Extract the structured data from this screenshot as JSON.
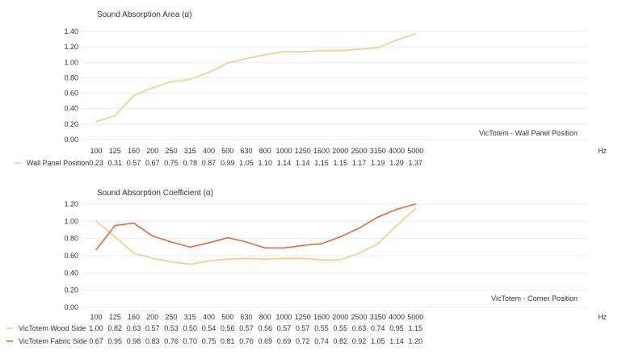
{
  "chart_data": [
    {
      "type": "line",
      "title": "Sound Absorption Area (α)",
      "position_label": "VicTotem - Wall Panel Position",
      "unit": "Hz",
      "x": [
        "100",
        "125",
        "160",
        "200",
        "250",
        "315",
        "400",
        "500",
        "630",
        "800",
        "1000",
        "1250",
        "1600",
        "2000",
        "2500",
        "3150",
        "4000",
        "5000"
      ],
      "yticks": [
        "0.00",
        "0.20",
        "0.40",
        "0.60",
        "0.80",
        "1.00",
        "1.20",
        "1.40"
      ],
      "ylim": [
        0,
        1.4
      ],
      "grid": true,
      "series": [
        {
          "name": "Wall Panel Position",
          "color": "#f6c77e",
          "values": [
            0.23,
            0.31,
            0.57,
            0.67,
            0.75,
            0.78,
            0.87,
            0.99,
            1.05,
            1.1,
            1.14,
            1.14,
            1.15,
            1.15,
            1.17,
            1.19,
            1.29,
            1.37
          ],
          "labels": [
            "0.23",
            "0.31",
            "0.57",
            "0.67",
            "0.75",
            "0.78",
            "0.87",
            "0.99",
            "1.05",
            "1.10",
            "1.14",
            "1.14",
            "1.15",
            "1.15",
            "1.17",
            "1.19",
            "1.29",
            "1.37"
          ]
        }
      ]
    },
    {
      "type": "line",
      "title": "Sound Absorption Coefficient (α)",
      "position_label": "VicTotem - Corner Position",
      "unit": "Hz",
      "x": [
        "100",
        "125",
        "160",
        "200",
        "250",
        "315",
        "400",
        "500",
        "630",
        "800",
        "1000",
        "1250",
        "1600",
        "2000",
        "2500",
        "3150",
        "4000",
        "5000"
      ],
      "yticks": [
        "0.00",
        "0.20",
        "0.40",
        "0.60",
        "0.80",
        "1.00",
        "1.20"
      ],
      "ylim": [
        0,
        1.2
      ],
      "grid": true,
      "series": [
        {
          "name": "VicTotem Wood Side",
          "color": "#f6c77e",
          "values": [
            1.0,
            0.82,
            0.63,
            0.57,
            0.53,
            0.5,
            0.54,
            0.56,
            0.57,
            0.56,
            0.57,
            0.57,
            0.55,
            0.55,
            0.63,
            0.74,
            0.95,
            1.15
          ],
          "labels": [
            "1.00",
            "0.82",
            "0.63",
            "0.57",
            "0.53",
            "0.50",
            "0.54",
            "0.56",
            "0.57",
            "0.56",
            "0.57",
            "0.57",
            "0.55",
            "0.55",
            "0.63",
            "0.74",
            "0.95",
            "1.15"
          ]
        },
        {
          "name": "VicTotem Fabric Side",
          "color": "#e8612c",
          "values": [
            0.67,
            0.95,
            0.98,
            0.83,
            0.76,
            0.7,
            0.75,
            0.81,
            0.76,
            0.69,
            0.69,
            0.72,
            0.74,
            0.82,
            0.92,
            1.05,
            1.14,
            1.2
          ],
          "labels": [
            "0.67",
            "0.95",
            "0.98",
            "0.83",
            "0.76",
            "0.70",
            "0.75",
            "0.81",
            "0.76",
            "0.69",
            "0.69",
            "0.72",
            "0.74",
            "0.82",
            "0.92",
            "1.05",
            "1.14",
            "1.20"
          ]
        }
      ]
    }
  ]
}
